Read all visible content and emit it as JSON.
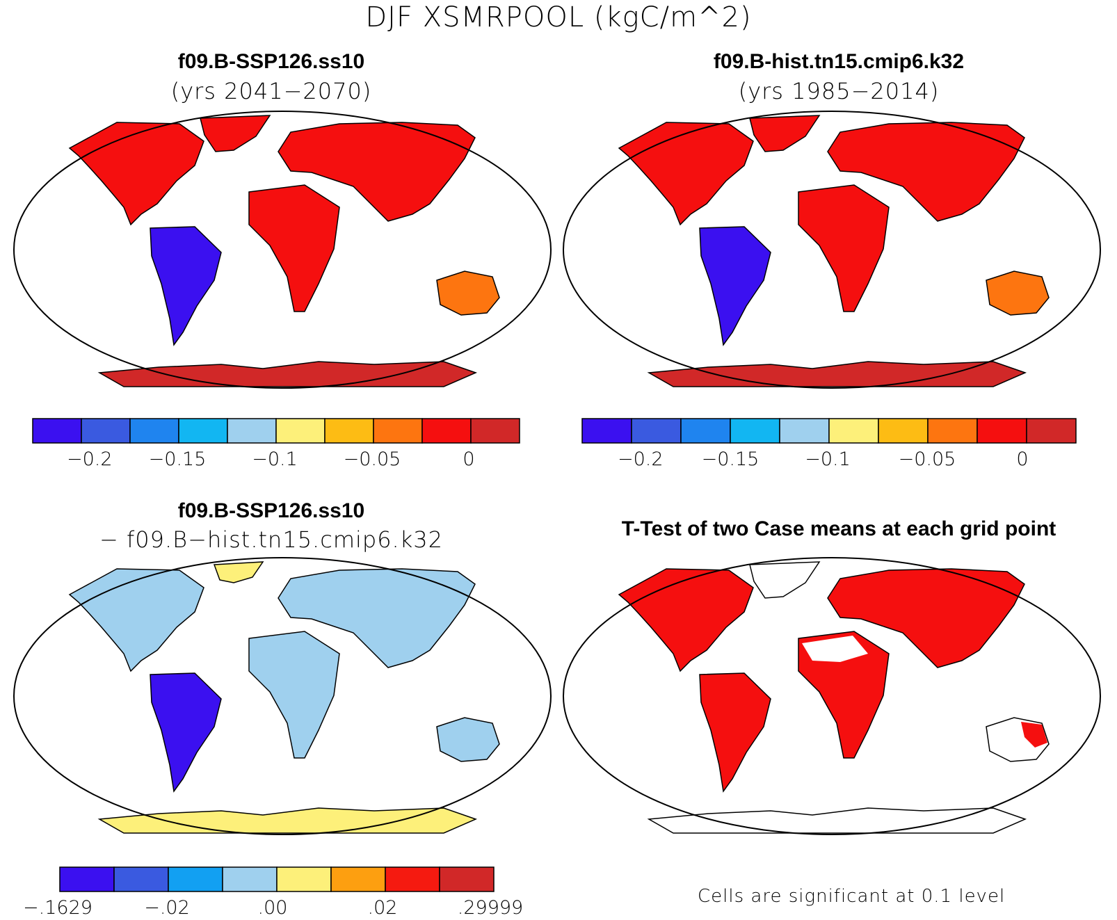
{
  "title": "DJF XSMRPOOL (kgC/m^2)",
  "panels": [
    {
      "title": "f09.B-SSP126.ss10",
      "subtitle": "(yrs 2041−2070)"
    },
    {
      "title": "f09.B-hist.tn15.cmip6.k32",
      "subtitle": "(yrs 1985−2014)"
    },
    {
      "title": "f09.B-SSP126.ss10",
      "subtitle": "− f09.B−hist.tn15.cmip6.k32"
    },
    {
      "title": "T-Test of two Case means at each grid point",
      "subtitle": ""
    }
  ],
  "colorbars": [
    {
      "colors": [
        "#3b10f0",
        "#3a5ae0",
        "#1f84ef",
        "#12b6f2",
        "#9fd0ee",
        "#fdf07a",
        "#fdbc14",
        "#fd7510",
        "#f50f0f",
        "#d12828"
      ],
      "labels": [
        "−0.2",
        "−0.15",
        "−0.1",
        "−0.05",
        "0"
      ]
    },
    {
      "colors": [
        "#3b10f0",
        "#3a5ae0",
        "#1f84ef",
        "#12b6f2",
        "#9fd0ee",
        "#fdf07a",
        "#fdbc14",
        "#fd7510",
        "#f50f0f",
        "#d12828"
      ],
      "labels": [
        "−0.2",
        "−0.15",
        "−0.1",
        "−0.05",
        "0"
      ]
    },
    {
      "colors": [
        "#3b10f0",
        "#3a5ae0",
        "#12a0f2",
        "#9fd0ee",
        "#fdf07a",
        "#fd9f10",
        "#f51a10",
        "#d12828"
      ],
      "labels": [
        ".1629",
        "−.02",
        ".00",
        ".02",
        ".29999"
      ],
      "first_label_prefix": "−"
    }
  ],
  "note": "Cells are significant at 0.1 level",
  "colors": {
    "land_outline": "#000000",
    "significant": "#f50f0f"
  }
}
